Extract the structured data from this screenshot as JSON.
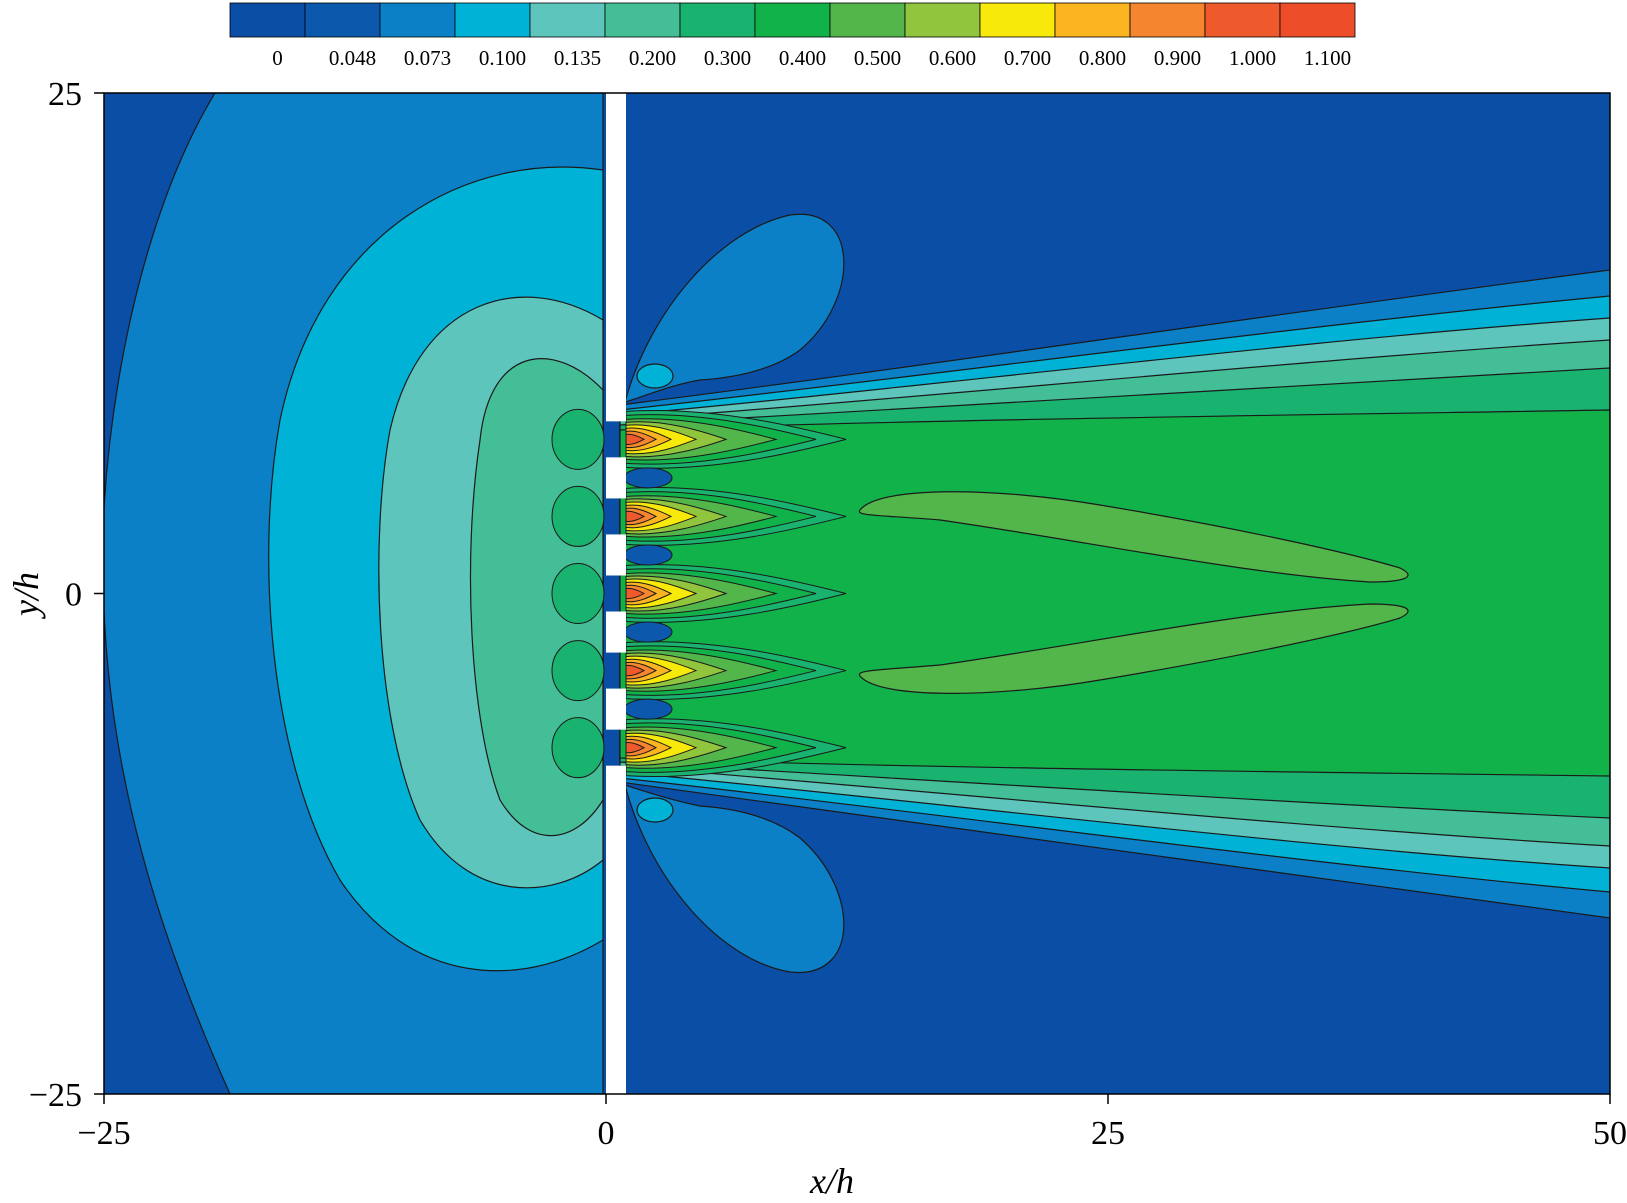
{
  "chart_data": {
    "type": "heatmap",
    "title": "",
    "xlabel": "x/h",
    "ylabel": "y/h",
    "xlim": [
      -25,
      50
    ],
    "ylim": [
      -25,
      25
    ],
    "x_ticks": [
      "−25",
      "0",
      "25",
      "50"
    ],
    "y_ticks": [
      "25",
      "0",
      "−25"
    ],
    "x_tick_values": [
      -25,
      0,
      25,
      50
    ],
    "y_tick_values": [
      25,
      0,
      -25
    ],
    "colorbar": {
      "placement": "top",
      "levels": [
        "0",
        "0.048",
        "0.073",
        "0.100",
        "0.135",
        "0.200",
        "0.300",
        "0.400",
        "0.500",
        "0.600",
        "0.700",
        "0.800",
        "0.900",
        "1.000",
        "1.100"
      ],
      "colors": [
        "#0a4ea6",
        "#0b58ad",
        "#0b80c7",
        "#00b3d6",
        "#5dc5bc",
        "#44be97",
        "#19b26f",
        "#11b24a",
        "#53b64a",
        "#90c53d",
        "#f7ea0b",
        "#fbb520",
        "#f5862f",
        "#ef5a2c",
        "#ee4d2a"
      ]
    },
    "grid": false,
    "legend": "top",
    "features": {
      "wall_at_x": 0,
      "wall_openings_y": [
        -7.7,
        -3.85,
        0,
        3.85,
        7.7
      ],
      "jet_peak_value": 0.95
    }
  }
}
